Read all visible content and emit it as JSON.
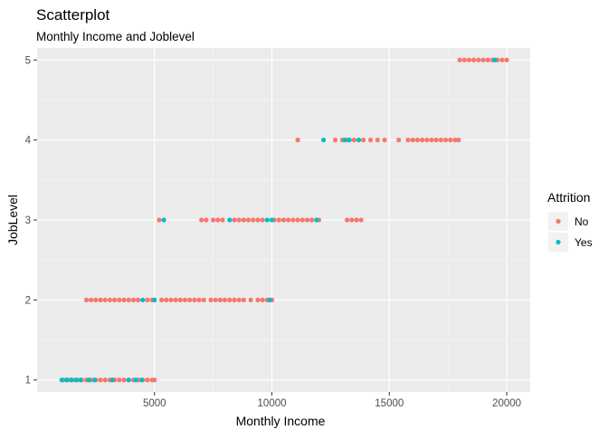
{
  "chart_data": {
    "type": "scatter",
    "title": "Scatterplot",
    "subtitle": "Monthly Income and Joblevel",
    "xlabel": "Monthly Income",
    "ylabel": "JobLevel",
    "xlim": [
      0,
      21000
    ],
    "ylim": [
      0.85,
      5.15
    ],
    "x_ticks": [
      5000,
      10000,
      15000,
      20000
    ],
    "y_ticks": [
      1,
      2,
      3,
      4,
      5
    ],
    "grid": true,
    "legend": {
      "title": "Attrition",
      "position": "right"
    },
    "series": [
      {
        "name": "No",
        "color": "#F8766D",
        "points": [
          [
            1100,
            1
          ],
          [
            1300,
            1
          ],
          [
            1500,
            1
          ],
          [
            1700,
            1
          ],
          [
            1900,
            1
          ],
          [
            2100,
            1
          ],
          [
            2300,
            1
          ],
          [
            2500,
            1
          ],
          [
            2700,
            1
          ],
          [
            2900,
            1
          ],
          [
            3100,
            1
          ],
          [
            3300,
            1
          ],
          [
            3500,
            1
          ],
          [
            3700,
            1
          ],
          [
            3900,
            1
          ],
          [
            4100,
            1
          ],
          [
            4300,
            1
          ],
          [
            4500,
            1
          ],
          [
            4700,
            1
          ],
          [
            4900,
            1
          ],
          [
            5000,
            1
          ],
          [
            2100,
            2
          ],
          [
            2300,
            2
          ],
          [
            2500,
            2
          ],
          [
            2700,
            2
          ],
          [
            2900,
            2
          ],
          [
            3100,
            2
          ],
          [
            3300,
            2
          ],
          [
            3500,
            2
          ],
          [
            3700,
            2
          ],
          [
            3900,
            2
          ],
          [
            4100,
            2
          ],
          [
            4300,
            2
          ],
          [
            4700,
            2
          ],
          [
            4900,
            2
          ],
          [
            5300,
            2
          ],
          [
            5500,
            2
          ],
          [
            5700,
            2
          ],
          [
            5900,
            2
          ],
          [
            6100,
            2
          ],
          [
            6300,
            2
          ],
          [
            6500,
            2
          ],
          [
            6700,
            2
          ],
          [
            6900,
            2
          ],
          [
            7100,
            2
          ],
          [
            7400,
            2
          ],
          [
            7600,
            2
          ],
          [
            7800,
            2
          ],
          [
            8000,
            2
          ],
          [
            8200,
            2
          ],
          [
            8400,
            2
          ],
          [
            8600,
            2
          ],
          [
            8800,
            2
          ],
          [
            9100,
            2
          ],
          [
            9400,
            2
          ],
          [
            9600,
            2
          ],
          [
            9800,
            2
          ],
          [
            10000,
            2
          ],
          [
            5200,
            3
          ],
          [
            7000,
            3
          ],
          [
            7200,
            3
          ],
          [
            7500,
            3
          ],
          [
            7700,
            3
          ],
          [
            7900,
            3
          ],
          [
            8400,
            3
          ],
          [
            8600,
            3
          ],
          [
            8800,
            3
          ],
          [
            9000,
            3
          ],
          [
            9200,
            3
          ],
          [
            9400,
            3
          ],
          [
            9600,
            3
          ],
          [
            10100,
            3
          ],
          [
            10300,
            3
          ],
          [
            10500,
            3
          ],
          [
            10700,
            3
          ],
          [
            10900,
            3
          ],
          [
            11100,
            3
          ],
          [
            11300,
            3
          ],
          [
            11500,
            3
          ],
          [
            11700,
            3
          ],
          [
            12000,
            3
          ],
          [
            13200,
            3
          ],
          [
            13400,
            3
          ],
          [
            13600,
            3
          ],
          [
            13800,
            3
          ],
          [
            11100,
            4
          ],
          [
            12700,
            4
          ],
          [
            13000,
            4
          ],
          [
            13200,
            4
          ],
          [
            13500,
            4
          ],
          [
            13900,
            4
          ],
          [
            14200,
            4
          ],
          [
            14500,
            4
          ],
          [
            14800,
            4
          ],
          [
            15400,
            4
          ],
          [
            15800,
            4
          ],
          [
            16000,
            4
          ],
          [
            16200,
            4
          ],
          [
            16400,
            4
          ],
          [
            16600,
            4
          ],
          [
            16800,
            4
          ],
          [
            17000,
            4
          ],
          [
            17200,
            4
          ],
          [
            17400,
            4
          ],
          [
            17600,
            4
          ],
          [
            17800,
            4
          ],
          [
            17950,
            4
          ],
          [
            18000,
            5
          ],
          [
            18200,
            5
          ],
          [
            18400,
            5
          ],
          [
            18600,
            5
          ],
          [
            18800,
            5
          ],
          [
            19000,
            5
          ],
          [
            19200,
            5
          ],
          [
            19400,
            5
          ],
          [
            19600,
            5
          ],
          [
            19800,
            5
          ],
          [
            20000,
            5
          ]
        ]
      },
      {
        "name": "Yes",
        "color": "#00BFC4",
        "points": [
          [
            1050,
            1
          ],
          [
            1250,
            1
          ],
          [
            1450,
            1
          ],
          [
            1650,
            1
          ],
          [
            1850,
            1
          ],
          [
            2200,
            1
          ],
          [
            2450,
            1
          ],
          [
            3200,
            1
          ],
          [
            3900,
            1
          ],
          [
            4200,
            1
          ],
          [
            4450,
            1
          ],
          [
            4500,
            2
          ],
          [
            5000,
            2
          ],
          [
            9900,
            2
          ],
          [
            5400,
            3
          ],
          [
            8200,
            3
          ],
          [
            9800,
            3
          ],
          [
            10000,
            3
          ],
          [
            11900,
            3
          ],
          [
            12200,
            4
          ],
          [
            13100,
            4
          ],
          [
            13300,
            4
          ],
          [
            13700,
            4
          ],
          [
            19500,
            5
          ]
        ]
      }
    ]
  }
}
